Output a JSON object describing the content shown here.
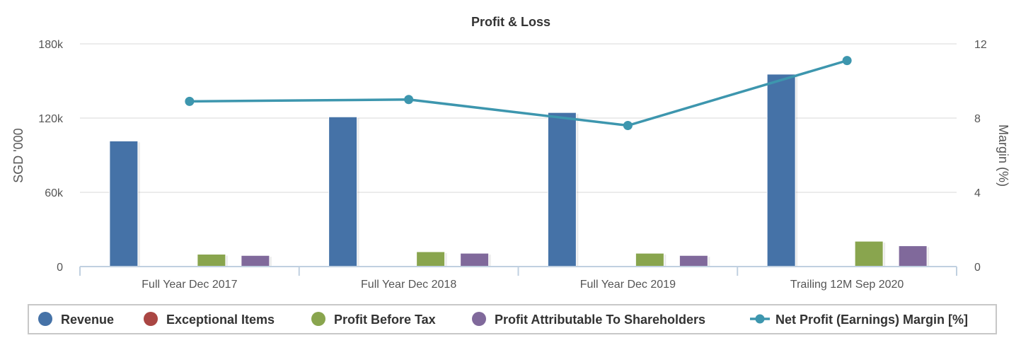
{
  "chart_data": {
    "type": "bar",
    "title": "Profit & Loss",
    "categories": [
      "Full Year Dec 2017",
      "Full Year Dec 2018",
      "Full Year Dec 2019",
      "Trailing 12M Sep 2020"
    ],
    "ylabel": "SGD '000",
    "y2label": "Margin (%)",
    "ylim": [
      0,
      180000
    ],
    "y2lim": [
      0,
      12
    ],
    "yticks": [
      "0",
      "60k",
      "120k",
      "180k"
    ],
    "yticks_values": [
      0,
      60000,
      120000,
      180000
    ],
    "y2ticks": [
      "0",
      "4",
      "8",
      "12"
    ],
    "y2ticks_values": [
      0,
      4,
      8,
      12
    ],
    "grid": true,
    "legend_position": "bottom",
    "series": [
      {
        "name": "Revenue",
        "type": "bar",
        "color": "#4572a7",
        "values": [
          101500,
          121000,
          124500,
          155500
        ]
      },
      {
        "name": "Exceptional Items",
        "type": "bar",
        "color": "#aa4643",
        "values": [
          0,
          0,
          0,
          0
        ]
      },
      {
        "name": "Profit Before Tax",
        "type": "bar",
        "color": "#89a54e",
        "values": [
          10000,
          12000,
          10800,
          20500
        ]
      },
      {
        "name": "Profit Attributable To Shareholders",
        "type": "bar",
        "color": "#80699b",
        "values": [
          9000,
          10800,
          9000,
          16800
        ]
      },
      {
        "name": "Net Profit (Earnings) Margin [%]",
        "type": "line",
        "axis": "right",
        "color": "#3d96ae",
        "values": [
          8.9,
          9.0,
          7.6,
          11.1
        ]
      }
    ]
  }
}
